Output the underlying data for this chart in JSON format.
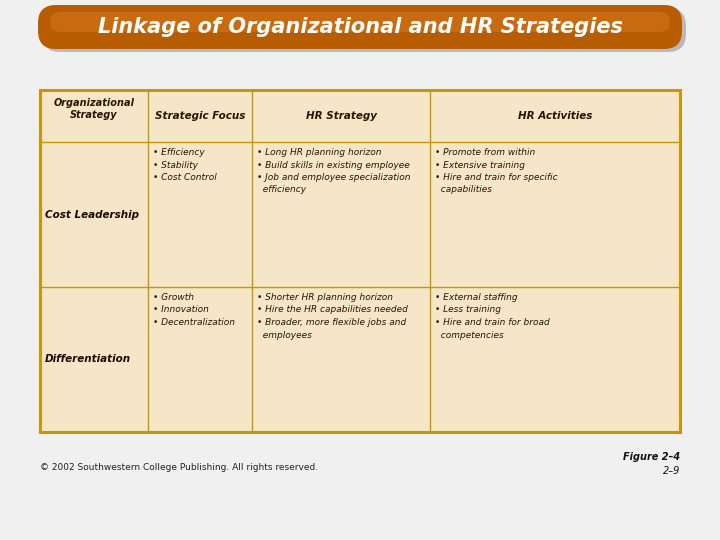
{
  "title": "Linkage of Organizational and HR Strategies",
  "title_bg_color": "#b85c00",
  "title_text_color": "#ffffff",
  "background_color": "#f0f0f0",
  "table_bg": "#f5e6c8",
  "table_border_color": "#c8960a",
  "footer_left": "© 2002 Southwestern College Publishing. All rights reserved.",
  "footer_right_top": "Figure 2–4",
  "footer_right_bottom": "2–9",
  "rows": [
    {
      "strategy": "Cost Leadership",
      "focus": "• Efficiency\n• Stability\n• Cost Control",
      "hr_strategy": "• Long HR planning horizon\n• Build skills in existing employee\n• Job and employee specialization\n  efficiency",
      "hr_activities": "• Promote from within\n• Extensive training\n• Hire and train for specific\n  capabilities"
    },
    {
      "strategy": "Differentiation",
      "focus": "• Growth\n• Innovation\n• Decentralization",
      "hr_strategy": "• Shorter HR planning horizon\n• Hire the HR capabilities needed\n• Broader, more flexible jobs and\n  employees",
      "hr_activities": "• External staffing\n• Less training\n• Hire and train for broad\n  competencies"
    }
  ]
}
